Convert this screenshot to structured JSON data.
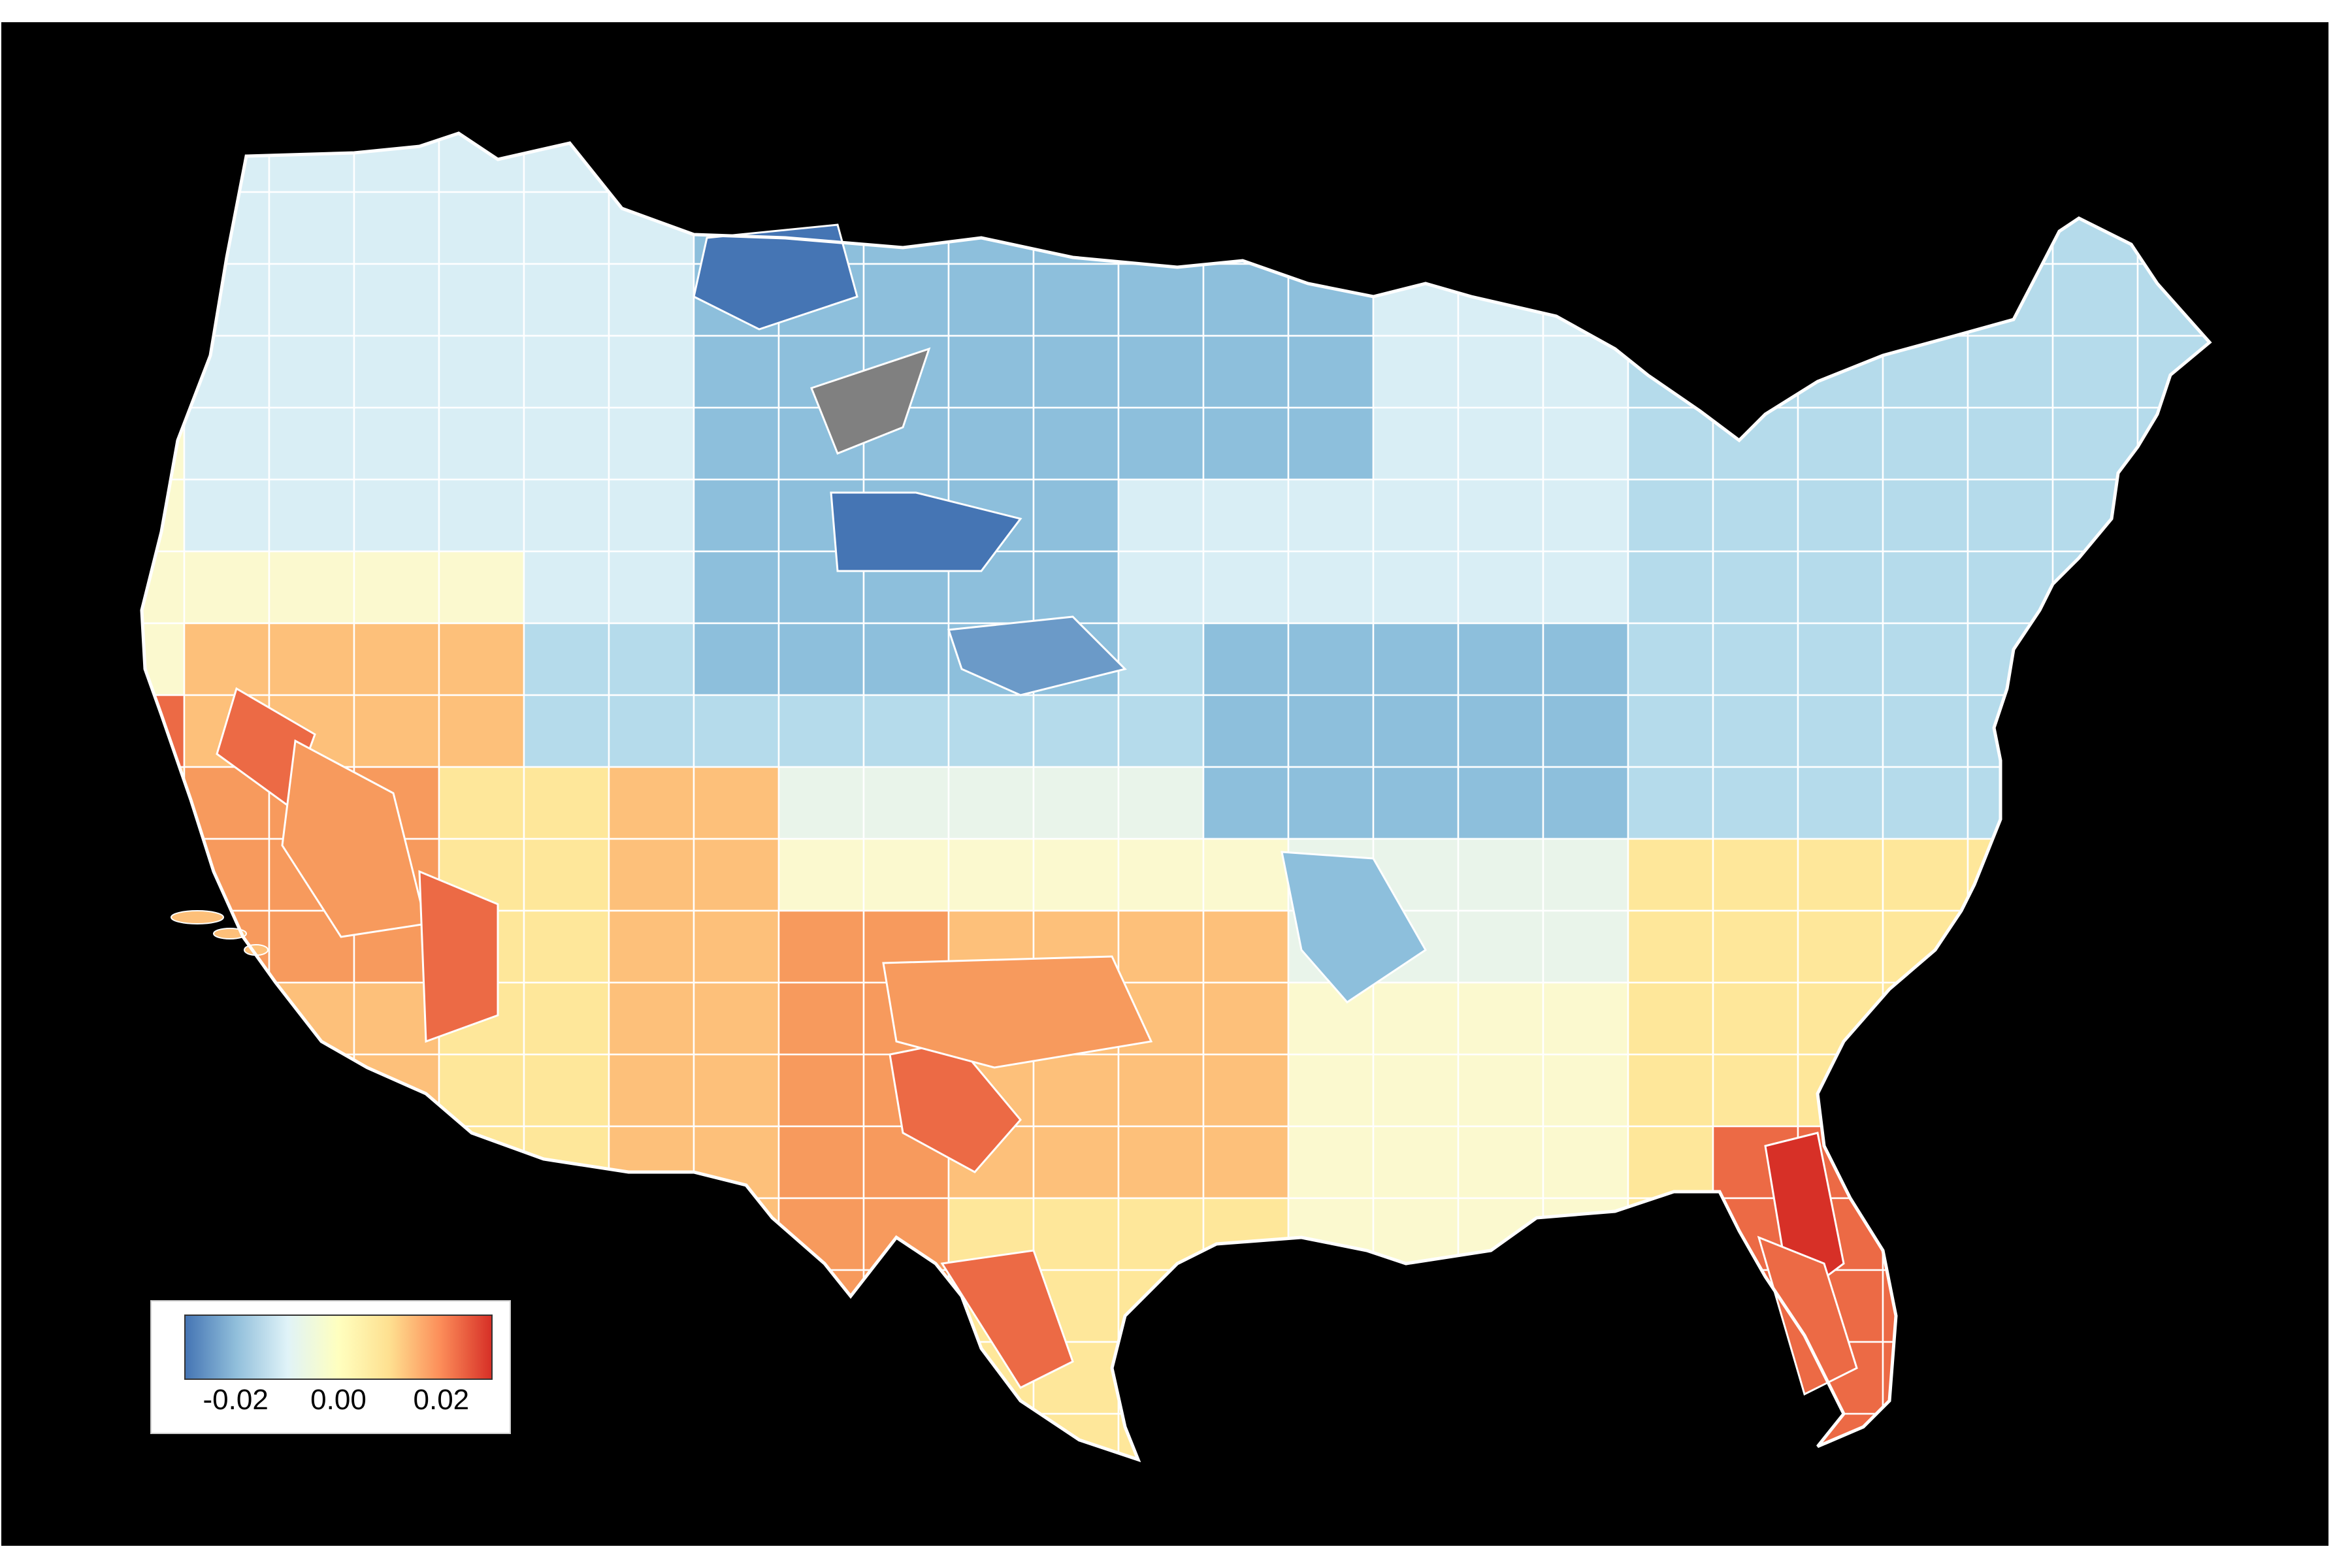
{
  "map": {
    "background": "#000000",
    "outline_color": "#ffffff",
    "missing_color": "#808080",
    "region_colors": {
      "deep_blue": "#4575b4",
      "blue": "#6b9ac8",
      "mid_blue": "#8dbfdc",
      "light_blue": "#b5dbeb",
      "pale_blue": "#d9eef5",
      "pale_green": "#e9f4ea",
      "pale_yellow": "#fbf9cf",
      "yellow": "#fee79a",
      "light_orange": "#fdc07a",
      "orange": "#f79a5d",
      "red_orange": "#ec6a45",
      "red": "#d73027"
    }
  },
  "legend": {
    "colors": [
      "#4575b4",
      "#91bfdb",
      "#e0f3f8",
      "#ffffbf",
      "#fee090",
      "#fc8d59",
      "#d73027"
    ],
    "range": [
      -0.03,
      0.03
    ],
    "ticks": [
      {
        "value": -0.02,
        "label": "-0.02"
      },
      {
        "value": 0.0,
        "label": "0.00"
      },
      {
        "value": 0.02,
        "label": "0.02"
      }
    ]
  }
}
